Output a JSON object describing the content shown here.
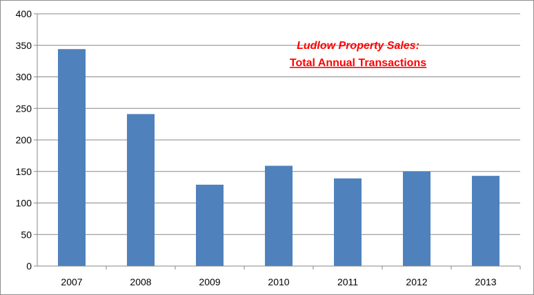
{
  "chart_data": {
    "type": "bar",
    "title": "Ludlow Property Sales:",
    "subtitle": "Total Annual Transactions",
    "xlabel": "",
    "ylabel": "",
    "categories": [
      "2007",
      "2008",
      "2009",
      "2010",
      "2011",
      "2012",
      "2013"
    ],
    "values": [
      344,
      241,
      129,
      159,
      139,
      150,
      143
    ],
    "ylim": [
      0,
      400
    ],
    "yticks": [
      0,
      50,
      100,
      150,
      200,
      250,
      300,
      350,
      400
    ],
    "grid": true,
    "legend": "none",
    "bar_color": "#4f81bd",
    "title_color": "#ff0000",
    "grid_color": "#868686"
  }
}
